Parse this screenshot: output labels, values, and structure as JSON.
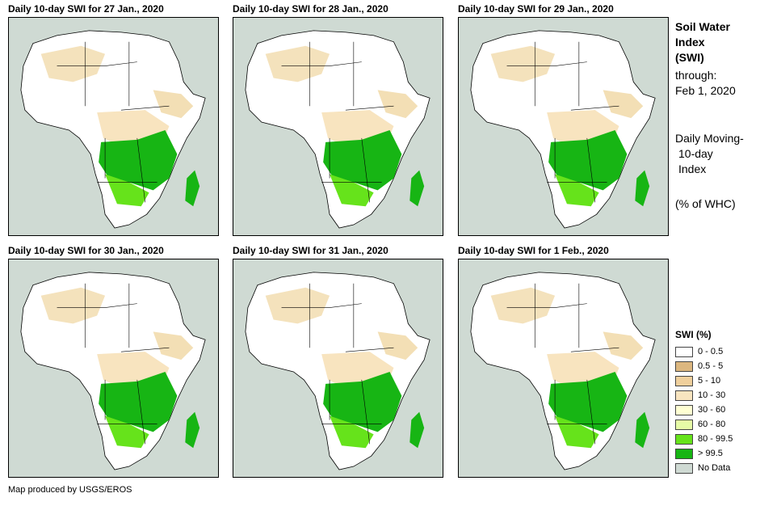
{
  "panels": [
    {
      "title": "Daily 10-day SWI for 27 Jan., 2020"
    },
    {
      "title": "Daily 10-day SWI for 28 Jan., 2020"
    },
    {
      "title": "Daily 10-day SWI for 29 Jan., 2020"
    },
    {
      "title": "Daily 10-day SWI for 30 Jan., 2020"
    },
    {
      "title": "Daily 10-day SWI for 31 Jan., 2020"
    },
    {
      "title": "Daily 10-day SWI for 1 Feb., 2020"
    }
  ],
  "side": {
    "title_line1": "Soil Water",
    "title_line2": "Index",
    "title_line3": "(SWI)",
    "through_label": "through:",
    "through_date": "Feb 1, 2020",
    "desc_line1": "Daily Moving-",
    "desc_line2": "10-day",
    "desc_line3": "Index",
    "units": "(% of WHC)"
  },
  "legend": {
    "title": "SWI (%)",
    "items": [
      {
        "label": "0 - 0.5",
        "color": "#ffffff"
      },
      {
        "label": "0.5 - 5",
        "color": "#dcb77f"
      },
      {
        "label": "5 - 10",
        "color": "#efcf9c"
      },
      {
        "label": "10 - 30",
        "color": "#f8e4bf"
      },
      {
        "label": "30 - 60",
        "color": "#ffffd2"
      },
      {
        "label": "60 - 80",
        "color": "#e6fba6"
      },
      {
        "label": "80 - 99.5",
        "color": "#66e31b"
      },
      {
        "label": "> 99.5",
        "color": "#17b514"
      },
      {
        "label": "No Data",
        "color": "#cfdad3"
      }
    ]
  },
  "footer": "Map produced by USGS/EROS"
}
